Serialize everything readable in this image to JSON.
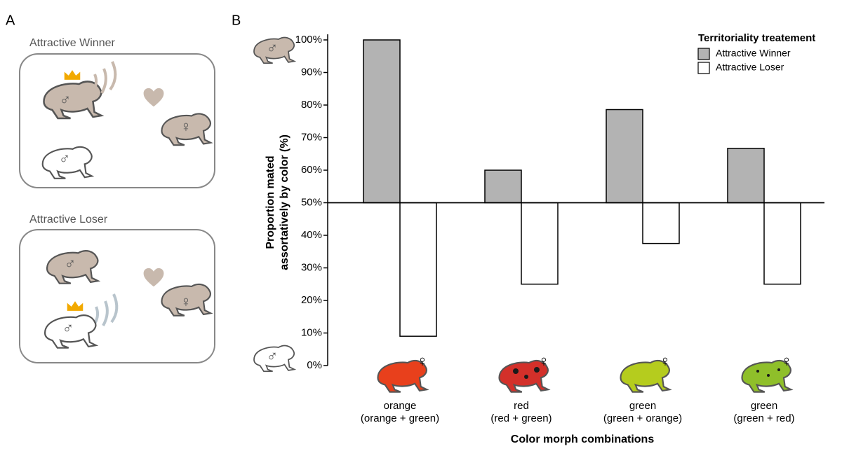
{
  "panels": {
    "A": {
      "label": "A",
      "scenarios": [
        {
          "title": "Attractive Winner"
        },
        {
          "title": "Attractive Loser"
        }
      ],
      "male_symbol": "♂",
      "female_symbol": "♀"
    },
    "B": {
      "label": "B"
    }
  },
  "chart_data": {
    "type": "bar",
    "categories": [
      "orange",
      "red",
      "green",
      "green"
    ],
    "category_details": [
      "(orange + green)",
      "(red + green)",
      "(green + orange)",
      "(green + red)"
    ],
    "ylabel": [
      "Proportion mated",
      "assortatively by color (%)"
    ],
    "xlabel": "Color morph combinations",
    "legend_title": "Territoriality treatement",
    "baseline": 50,
    "series": [
      {
        "name": "Attractive Winner",
        "color": "#b3b3b3",
        "values": [
          100,
          60,
          78.6,
          66.7
        ]
      },
      {
        "name": "Attractive Loser",
        "color": "#ffffff",
        "values": [
          9,
          25,
          37.5,
          25
        ]
      }
    ],
    "ylim": [
      0,
      100
    ],
    "yticks": [
      {
        "value": 0,
        "label": "0%"
      },
      {
        "value": 10,
        "label": "10%"
      },
      {
        "value": 20,
        "label": "20%"
      },
      {
        "value": 30,
        "label": "30%"
      },
      {
        "value": 40,
        "label": "40%"
      },
      {
        "value": 50,
        "label": "50%"
      },
      {
        "value": 60,
        "label": "60%"
      },
      {
        "value": 70,
        "label": "70%"
      },
      {
        "value": 80,
        "label": "80%"
      },
      {
        "value": 90,
        "label": "90%"
      },
      {
        "value": 100,
        "label": "100%"
      }
    ],
    "grid": false
  }
}
